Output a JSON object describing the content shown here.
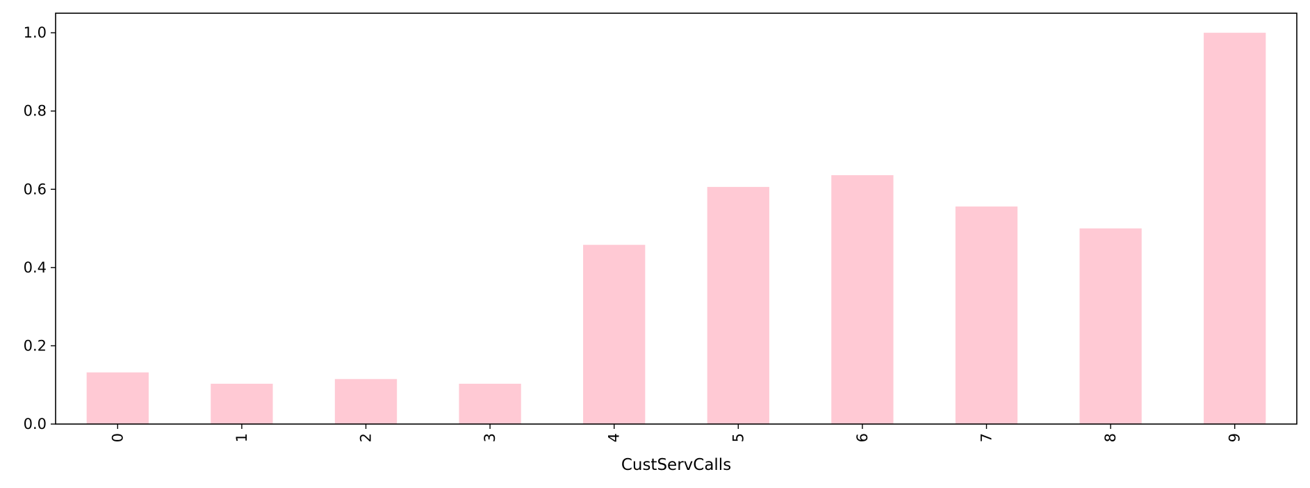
{
  "chart_data": {
    "type": "bar",
    "title": "",
    "xlabel": "CustServCalls",
    "ylabel": "",
    "categories": [
      "0",
      "1",
      "2",
      "3",
      "4",
      "5",
      "6",
      "7",
      "8",
      "9"
    ],
    "values": [
      0.132,
      0.103,
      0.115,
      0.103,
      0.458,
      0.606,
      0.636,
      0.556,
      0.5,
      1.0
    ],
    "ylim": [
      0,
      1.05
    ],
    "yticks": [
      "0.0",
      "0.2",
      "0.4",
      "0.6",
      "0.8",
      "1.0"
    ],
    "xtick_rotation": "vertical",
    "bar_color": "#ffc9d4",
    "grid": false,
    "legend": "none"
  }
}
